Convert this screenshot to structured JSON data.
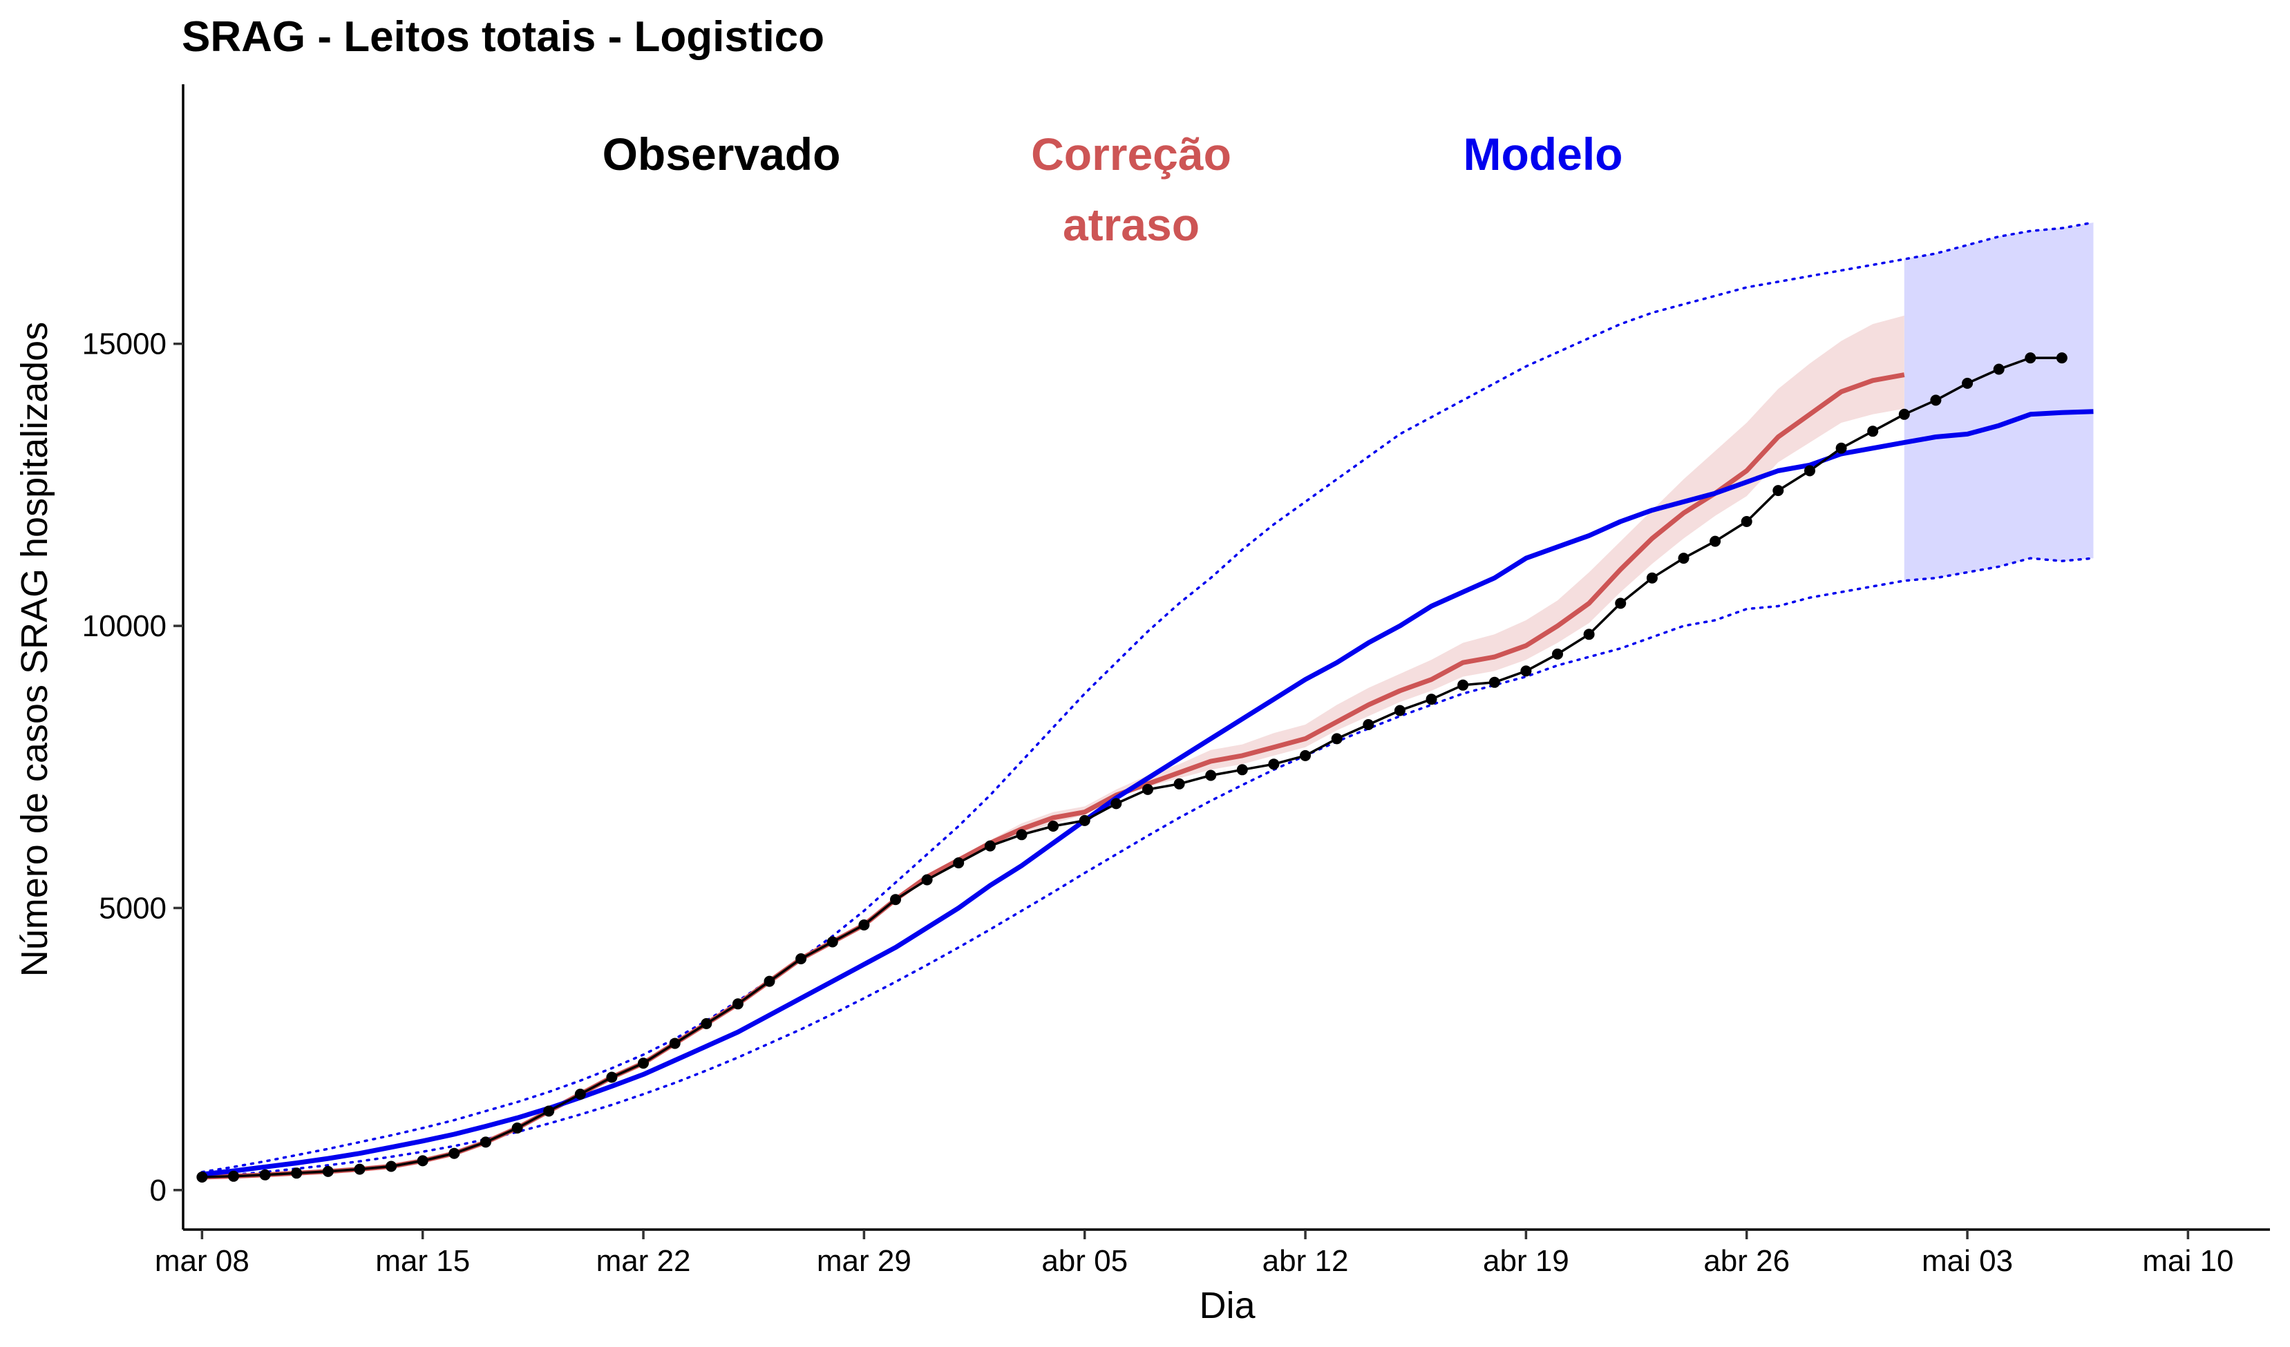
{
  "chart_data": {
    "type": "line",
    "title": "SRAG - Leitos totais - Logistico",
    "xlabel": "Dia",
    "ylabel": "Número de casos SRAG hospitalizados",
    "x_start_label": "mar 08",
    "xlim": [
      -0.6,
      65.6
    ],
    "ylim": [
      -700,
      19600
    ],
    "x_ticks": [
      {
        "x": 0,
        "label": "mar 08"
      },
      {
        "x": 7,
        "label": "mar 15"
      },
      {
        "x": 14,
        "label": "mar 22"
      },
      {
        "x": 21,
        "label": "mar 29"
      },
      {
        "x": 28,
        "label": "abr 05"
      },
      {
        "x": 35,
        "label": "abr 12"
      },
      {
        "x": 42,
        "label": "abr 19"
      },
      {
        "x": 49,
        "label": "abr 26"
      },
      {
        "x": 56,
        "label": "mai 03"
      },
      {
        "x": 63,
        "label": "mai 10"
      }
    ],
    "y_ticks": [
      {
        "y": 0,
        "label": "0"
      },
      {
        "y": 5000,
        "label": "5000"
      },
      {
        "y": 10000,
        "label": "10000"
      },
      {
        "y": 15000,
        "label": "15000"
      }
    ],
    "grid": false,
    "legend": [
      {
        "text": "Observado",
        "color": "#000000"
      },
      {
        "text": "Correção",
        "text2": "atraso",
        "color": "#cd5555"
      },
      {
        "text": "Modelo",
        "color": "#0000ee"
      }
    ],
    "series": [
      {
        "name": "Observado",
        "color": "#000000",
        "style": "line-points",
        "x": [
          0,
          1,
          2,
          3,
          4,
          5,
          6,
          7,
          8,
          9,
          10,
          11,
          12,
          13,
          14,
          15,
          16,
          17,
          18,
          19,
          20,
          21,
          22,
          23,
          24,
          25,
          26,
          27,
          28,
          29,
          30,
          31,
          32,
          33,
          34,
          35,
          36,
          37,
          38,
          39,
          40,
          41,
          42,
          43,
          44,
          45,
          46,
          47,
          48,
          49,
          50,
          51,
          52,
          53,
          54,
          55,
          56,
          57,
          58,
          59,
          60,
          61,
          62
        ],
        "y": [
          230,
          245,
          270,
          300,
          330,
          370,
          420,
          520,
          650,
          850,
          1100,
          1400,
          1700,
          2000,
          2250,
          2600,
          2950,
          3300,
          3700,
          4100,
          4400,
          4700,
          5150,
          5500,
          5800,
          6100,
          6300,
          6450,
          6550,
          6850,
          7100,
          7200,
          7350,
          7450,
          7550,
          7700,
          8000,
          8250,
          8500,
          8700,
          8950,
          9000,
          9200,
          9500,
          9850,
          10400,
          10850,
          11200,
          11500,
          11850,
          12400,
          12750,
          13150,
          13450,
          13750,
          14000,
          14300,
          14550,
          14750,
          14750,
          null,
          null,
          null
        ]
      },
      {
        "name": "Correção atraso",
        "color": "#cd5555",
        "style": "line-band",
        "x": [
          0,
          1,
          2,
          3,
          4,
          5,
          6,
          7,
          8,
          9,
          10,
          11,
          12,
          13,
          14,
          15,
          16,
          17,
          18,
          19,
          20,
          21,
          22,
          23,
          24,
          25,
          26,
          27,
          28,
          29,
          30,
          31,
          32,
          33,
          34,
          35,
          36,
          37,
          38,
          39,
          40,
          41,
          42,
          43,
          44,
          45,
          46,
          47,
          48,
          49,
          50,
          51,
          52,
          53,
          54
        ],
        "y": [
          230,
          245,
          270,
          300,
          330,
          370,
          420,
          520,
          650,
          850,
          1100,
          1400,
          1700,
          2000,
          2250,
          2600,
          2950,
          3300,
          3700,
          4100,
          4400,
          4700,
          5150,
          5550,
          5850,
          6150,
          6400,
          6600,
          6700,
          7000,
          7200,
          7400,
          7600,
          7700,
          7850,
          8000,
          8300,
          8600,
          8850,
          9050,
          9350,
          9450,
          9650,
          10000,
          10400,
          11000,
          11550,
          12000,
          12350,
          12750,
          13350,
          13750,
          14150,
          14350,
          14450
        ],
        "lower": [
          230,
          245,
          270,
          300,
          330,
          370,
          420,
          520,
          650,
          850,
          1100,
          1400,
          1700,
          2000,
          2250,
          2600,
          2950,
          3300,
          3700,
          4100,
          4400,
          4700,
          5150,
          5500,
          5800,
          6100,
          6300,
          6500,
          6650,
          6950,
          7150,
          7300,
          7450,
          7550,
          7700,
          7850,
          8150,
          8400,
          8650,
          8850,
          9100,
          9200,
          9400,
          9700,
          10050,
          10600,
          11100,
          11550,
          11950,
          12300,
          12900,
          13250,
          13600,
          13750,
          13850
        ],
        "upper": [
          230,
          245,
          270,
          300,
          330,
          370,
          420,
          520,
          650,
          850,
          1100,
          1400,
          1700,
          2000,
          2250,
          2600,
          2950,
          3300,
          3700,
          4100,
          4400,
          4700,
          5150,
          5600,
          5900,
          6200,
          6500,
          6700,
          6800,
          7100,
          7350,
          7550,
          7800,
          7900,
          8100,
          8250,
          8600,
          8900,
          9150,
          9400,
          9700,
          9850,
          10100,
          10450,
          10950,
          11500,
          12050,
          12600,
          13100,
          13600,
          14200,
          14650,
          15050,
          15350,
          15500
        ]
      },
      {
        "name": "Modelo",
        "color": "#0000ee",
        "style": "line-dotted-bounds",
        "x": [
          0,
          1,
          2,
          3,
          4,
          5,
          6,
          7,
          8,
          9,
          10,
          11,
          12,
          13,
          14,
          15,
          16,
          17,
          18,
          19,
          20,
          21,
          22,
          23,
          24,
          25,
          26,
          27,
          28,
          29,
          30,
          31,
          32,
          33,
          34,
          35,
          36,
          37,
          38,
          39,
          40,
          41,
          42,
          43,
          44,
          45,
          46,
          47,
          48,
          49,
          50,
          51,
          52,
          53,
          54,
          55,
          56,
          57,
          58,
          59,
          60
        ],
        "y": [
          280,
          340,
          410,
          480,
          560,
          650,
          760,
          870,
          990,
          1130,
          1280,
          1450,
          1640,
          1840,
          2050,
          2300,
          2550,
          2800,
          3100,
          3400,
          3700,
          4000,
          4300,
          4650,
          5000,
          5400,
          5750,
          6150,
          6550,
          6950,
          7300,
          7650,
          8000,
          8350,
          8700,
          9050,
          9350,
          9700,
          10000,
          10350,
          10600,
          10850,
          11200,
          11400,
          11600,
          11850,
          12050,
          12200,
          12350,
          12550,
          12750,
          12850,
          13050,
          13150,
          13250,
          13350,
          13400,
          13550,
          13750,
          13780,
          13800
        ],
        "lower": [
          230,
          270,
          320,
          380,
          440,
          510,
          590,
          680,
          780,
          900,
          1030,
          1180,
          1340,
          1510,
          1700,
          1900,
          2120,
          2350,
          2600,
          2850,
          3120,
          3400,
          3690,
          3990,
          4300,
          4620,
          4950,
          5280,
          5620,
          5950,
          6280,
          6600,
          6900,
          7180,
          7450,
          7700,
          7950,
          8180,
          8400,
          8600,
          8800,
          8950,
          9100,
          9300,
          9450,
          9600,
          9800,
          10000,
          10100,
          10300,
          10350,
          10500,
          10600,
          10700,
          10800,
          10850,
          10950,
          11050,
          11200,
          11150,
          11200
        ],
        "upper": [
          320,
          410,
          510,
          620,
          730,
          850,
          970,
          1100,
          1240,
          1400,
          1560,
          1740,
          1940,
          2160,
          2400,
          2680,
          3000,
          3350,
          3720,
          4100,
          4500,
          4950,
          5450,
          5950,
          6450,
          7000,
          7600,
          8200,
          8800,
          9350,
          9900,
          10400,
          10850,
          11350,
          11800,
          12200,
          12600,
          13000,
          13400,
          13700,
          14000,
          14300,
          14600,
          14850,
          15100,
          15350,
          15550,
          15700,
          15850,
          16000,
          16100,
          16200,
          16300,
          16400,
          16500,
          16600,
          16750,
          16900,
          17000,
          17050,
          17150
        ],
        "band_from_x": 54
      }
    ]
  }
}
